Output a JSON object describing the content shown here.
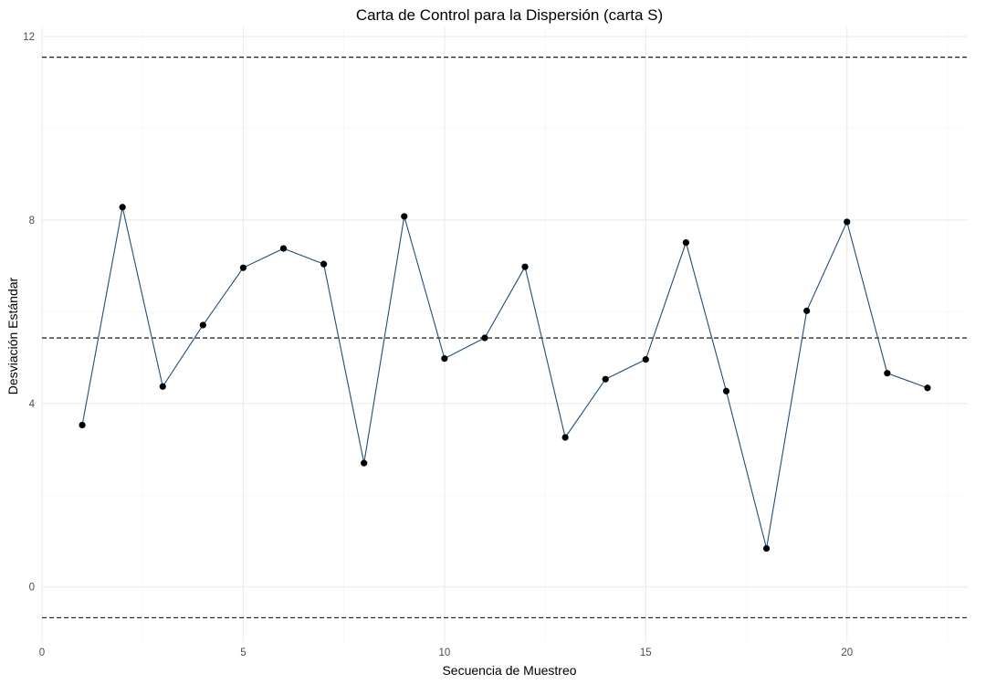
{
  "chart_data": {
    "type": "line",
    "title": "Carta de Control para la Dispersión (carta S)",
    "xlabel": "Secuencia de Muestreo",
    "ylabel": "Desviación Estándar",
    "xlim": [
      0,
      23
    ],
    "ylim": [
      -1.2,
      12.2
    ],
    "x_ticks": [
      0,
      5,
      10,
      15,
      20
    ],
    "y_ticks": [
      0,
      4,
      8,
      12
    ],
    "x_tick_labels": [
      "0",
      "5",
      "10",
      "15",
      "20"
    ],
    "y_tick_labels": [
      "0",
      "4",
      "8",
      "12"
    ],
    "grid": true,
    "legend": "none",
    "series": [
      {
        "x": [
          1,
          2,
          3,
          4,
          5,
          6,
          7,
          8,
          9,
          10,
          11,
          12,
          13,
          14,
          15,
          16,
          17,
          18,
          19,
          20,
          21,
          22
        ],
        "values": [
          3.53,
          8.28,
          4.37,
          5.71,
          6.96,
          7.38,
          7.04,
          2.7,
          8.08,
          4.98,
          5.43,
          6.98,
          3.26,
          4.53,
          4.96,
          7.51,
          4.27,
          0.84,
          6.02,
          7.96,
          4.66,
          4.34
        ],
        "color": "#1f4e79",
        "marker_color": "#000000"
      }
    ],
    "control_limits": {
      "ucl": 11.55,
      "center": 5.43,
      "lcl": -0.67,
      "style": "dashed",
      "color": "#000000"
    }
  }
}
